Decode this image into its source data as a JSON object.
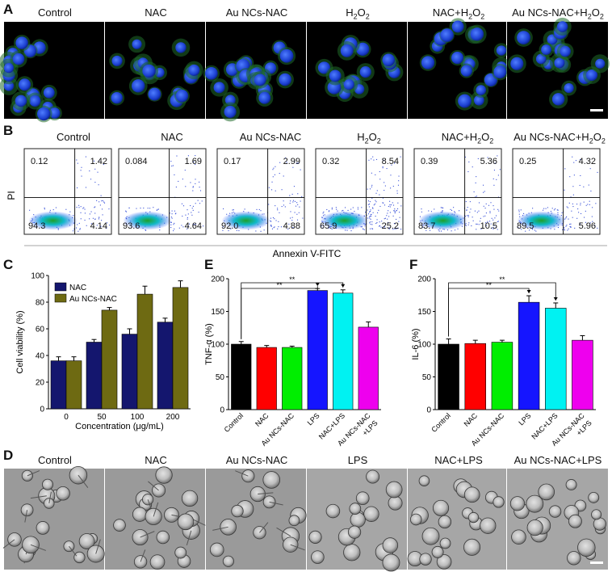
{
  "panel_letters": [
    "A",
    "B",
    "C",
    "E",
    "F",
    "D"
  ],
  "panel_a": {
    "labels": [
      "Control",
      "NAC",
      "Au NCs-NAC",
      "H",
      "NAC+H",
      "Au NCs-NAC+H"
    ],
    "chem": [
      "2",
      "O",
      "2"
    ]
  },
  "panel_b": {
    "labels": [
      "Control",
      "NAC",
      "Au NCs-NAC",
      "H",
      "NAC+H",
      "Au NCs-NAC+H"
    ],
    "chem": [
      "2",
      "O",
      "2"
    ],
    "y_title": "PI",
    "x_title": "Annexin V-FITC",
    "quadrants": [
      {
        "ul": "0.12",
        "ur": "1.42",
        "ll": "94.3",
        "lr": "4.14"
      },
      {
        "ul": "0.084",
        "ur": "1.69",
        "ll": "93.6",
        "lr": "4.64"
      },
      {
        "ul": "0.17",
        "ur": "2.99",
        "ll": "92.0",
        "lr": "4.88"
      },
      {
        "ul": "0.32",
        "ur": "8.54",
        "ll": "65.9",
        "lr": "25.2"
      },
      {
        "ul": "0.39",
        "ur": "5.36",
        "ll": "83.7",
        "lr": "10.5"
      },
      {
        "ul": "0.25",
        "ur": "4.32",
        "ll": "89.5",
        "lr": "5.96"
      }
    ]
  },
  "panel_d": {
    "labels": [
      "Control",
      "NAC",
      "Au NCs-NAC",
      "LPS",
      "NAC+LPS",
      "Au NCs-NAC+LPS"
    ]
  },
  "colors": {
    "nac": "#14166e",
    "au_nac": "#6e6a12",
    "black": "#000000",
    "red": "#ff0000",
    "green": "#00ee00",
    "blue": "#1515ff",
    "cyan": "#00f2f2",
    "magenta": "#ee00ee"
  },
  "chart_data": [
    {
      "type": "bar",
      "title": "",
      "xlabel": "Concentration (μg/mL)",
      "ylabel": "Cell viability (%)",
      "categories": [
        "0",
        "50",
        "100",
        "200"
      ],
      "ylim": [
        0,
        100
      ],
      "yticks": [
        "0",
        "20",
        "40",
        "60",
        "80",
        "100"
      ],
      "series": [
        {
          "name": "NAC",
          "values": [
            36,
            50,
            56,
            65
          ],
          "errors": [
            3,
            2,
            4,
            3
          ]
        },
        {
          "name": "Au NCs-NAC",
          "values": [
            36,
            74,
            86,
            91
          ],
          "errors": [
            3,
            2,
            6,
            5
          ]
        }
      ]
    },
    {
      "type": "bar",
      "title": "",
      "xlabel": "",
      "ylabel": "TNF-α (%)",
      "categories": [
        "Control",
        "NAC",
        "Au NCs-NAC",
        "LPS",
        "NAC+LPS",
        "Au NCs-NAC +LPS"
      ],
      "values": [
        100,
        95,
        95,
        182,
        178,
        126
      ],
      "errors": [
        4,
        3,
        2,
        3,
        5,
        8
      ],
      "ylim": [
        0,
        200
      ],
      "yticks": [
        "0",
        "50",
        "100",
        "150",
        "200"
      ],
      "significance": [
        "**",
        "**"
      ]
    },
    {
      "type": "bar",
      "title": "",
      "xlabel": "",
      "ylabel": "IL-6 (%)",
      "categories": [
        "Control",
        "NAC",
        "Au NCs-NAC",
        "LPS",
        "NAC+LPS",
        "Au NCs-NAC +LPS"
      ],
      "values": [
        100,
        101,
        103,
        164,
        155,
        106
      ],
      "errors": [
        8,
        5,
        3,
        10,
        8,
        7
      ],
      "ylim": [
        0,
        200
      ],
      "yticks": [
        "0",
        "50",
        "100",
        "150",
        "200"
      ],
      "significance": [
        "**",
        "**"
      ]
    }
  ]
}
